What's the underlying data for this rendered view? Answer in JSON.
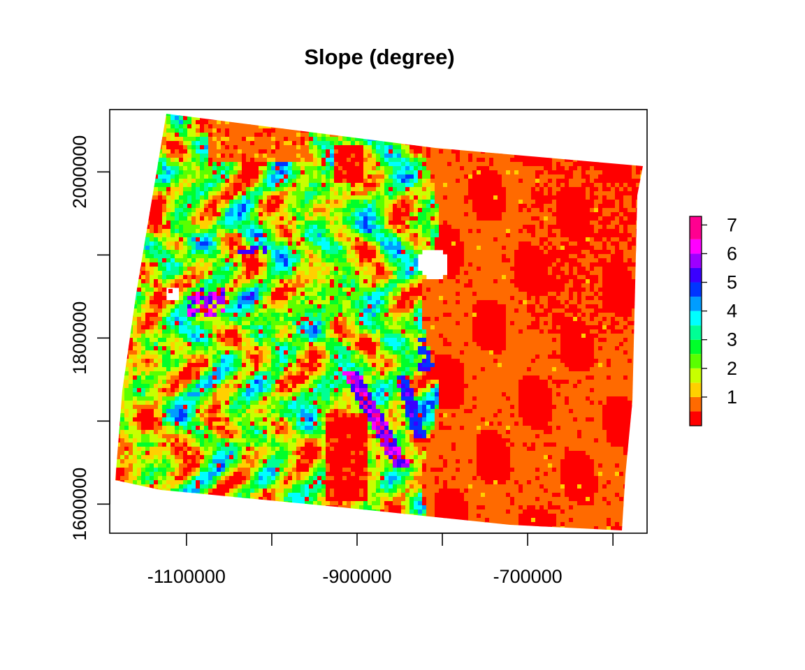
{
  "chart_data": {
    "type": "heatmap",
    "title": "Slope (degree)",
    "xlabel": "",
    "ylabel": "",
    "xlim": [
      -1190000,
      -560000
    ],
    "ylim": [
      1565000,
      2075000
    ],
    "x_ticks": [
      -1100000,
      -1000000,
      -900000,
      -800000,
      -700000,
      -600000
    ],
    "x_tick_labels": [
      "-1100000",
      "",
      "-900000",
      "",
      "-700000",
      ""
    ],
    "y_ticks": [
      1600000,
      1700000,
      1800000,
      1900000,
      2000000
    ],
    "y_tick_labels": [
      "1600000",
      "",
      "1800000",
      "",
      "2000000"
    ],
    "value_range": [
      0,
      7.3
    ],
    "colorbar": {
      "ticks": [
        1,
        2,
        3,
        4,
        5,
        6,
        7
      ],
      "tick_labels": [
        "1",
        "2",
        "3",
        "4",
        "5",
        "6",
        "7"
      ],
      "bins": [
        {
          "min": 0.0,
          "max": 0.5,
          "color": "#ff0000"
        },
        {
          "min": 0.5,
          "max": 1.0,
          "color": "#ff6a00"
        },
        {
          "min": 1.0,
          "max": 1.5,
          "color": "#ffd000"
        },
        {
          "min": 1.5,
          "max": 2.0,
          "color": "#c8ff00"
        },
        {
          "min": 2.0,
          "max": 2.5,
          "color": "#5aff00"
        },
        {
          "min": 2.5,
          "max": 3.0,
          "color": "#00ff2a"
        },
        {
          "min": 3.0,
          "max": 3.5,
          "color": "#00ff95"
        },
        {
          "min": 3.5,
          "max": 4.0,
          "color": "#00ffff"
        },
        {
          "min": 4.0,
          "max": 4.5,
          "color": "#009dff"
        },
        {
          "min": 4.5,
          "max": 5.0,
          "color": "#0035ff"
        },
        {
          "min": 5.0,
          "max": 5.5,
          "color": "#3a00ff"
        },
        {
          "min": 5.5,
          "max": 6.0,
          "color": "#9d00ff"
        },
        {
          "min": 6.0,
          "max": 6.5,
          "color": "#ff00ff"
        },
        {
          "min": 6.5,
          "max": 7.3,
          "color": "#ff0090"
        }
      ]
    },
    "grid": false,
    "legend": "right"
  }
}
